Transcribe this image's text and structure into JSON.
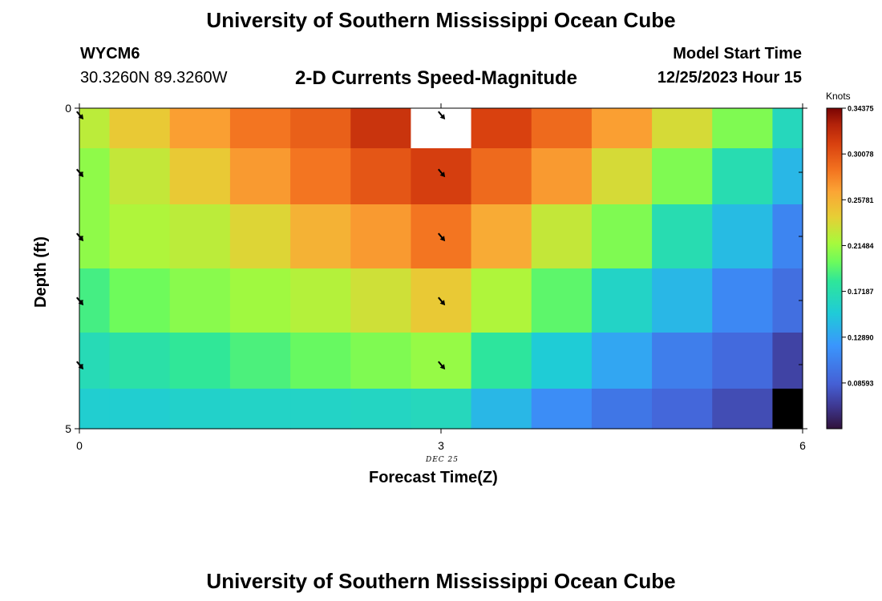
{
  "header": {
    "title": "University of Southern Mississippi Ocean Cube",
    "station": "WYCM6",
    "coords": "30.3260N  89.3260W",
    "subtitle": "2-D Currents Speed-Magnitude",
    "start_label": "Model Start Time",
    "start_time": "12/25/2023 Hour 15"
  },
  "footer": {
    "title": "University of Southern Mississippi Ocean Cube"
  },
  "chart_data": {
    "type": "heatmap",
    "title": "2-D Currents Speed-Magnitude",
    "xlabel": "Forecast Time(Z)",
    "ylabel": "Depth (ft)",
    "x_ticks": [
      "0",
      "3",
      "6"
    ],
    "y_ticks": [
      "0",
      "5"
    ],
    "date_label": "DEC 25",
    "xlim": [
      0,
      6
    ],
    "ylim": [
      0,
      5
    ],
    "x_centers": [
      0,
      0.5,
      1,
      1.5,
      2,
      2.5,
      3,
      3.5,
      4,
      4.5,
      5,
      5.5,
      6
    ],
    "depth_centers": [
      0.25,
      1.0,
      2.0,
      3.0,
      4.0,
      4.75
    ],
    "values": [
      [
        0.225,
        0.245,
        0.268,
        0.285,
        0.295,
        0.318,
        null,
        0.31,
        0.29,
        0.268,
        0.235,
        0.205,
        0.165
      ],
      [
        0.21,
        0.228,
        0.245,
        0.27,
        0.285,
        0.3,
        0.312,
        0.29,
        0.27,
        0.235,
        0.205,
        0.17,
        0.14
      ],
      [
        0.21,
        0.22,
        0.225,
        0.238,
        0.258,
        0.27,
        0.285,
        0.262,
        0.228,
        0.205,
        0.17,
        0.142,
        0.11
      ],
      [
        0.188,
        0.2,
        0.208,
        0.215,
        0.222,
        0.232,
        0.245,
        0.22,
        0.195,
        0.16,
        0.14,
        0.112,
        0.095
      ],
      [
        0.168,
        0.175,
        0.182,
        0.19,
        0.198,
        0.205,
        0.212,
        0.18,
        0.152,
        0.13,
        0.105,
        0.092,
        0.07
      ],
      [
        0.155,
        0.155,
        0.158,
        0.16,
        0.16,
        0.162,
        0.165,
        0.14,
        0.115,
        0.1,
        0.09,
        0.075,
        null
      ]
    ],
    "null_colors": [
      "#ffffff",
      "#000000"
    ],
    "arrows": [
      {
        "x": 0,
        "depth": 0.1
      },
      {
        "x": 0,
        "depth": 1.0
      },
      {
        "x": 0,
        "depth": 2.0
      },
      {
        "x": 0,
        "depth": 3.0
      },
      {
        "x": 0,
        "depth": 4.0
      },
      {
        "x": 3,
        "depth": 0.1
      },
      {
        "x": 3,
        "depth": 1.0
      },
      {
        "x": 3,
        "depth": 2.0
      },
      {
        "x": 3,
        "depth": 3.0
      },
      {
        "x": 3,
        "depth": 4.0
      }
    ],
    "colorbar": {
      "label": "Knots",
      "min": 0.043,
      "max": 0.34375,
      "tick_labels": [
        "0.34375",
        "0.30078",
        "0.25781",
        "0.21484",
        "0.17187",
        "0.12890",
        "0.08593"
      ],
      "tick_values": [
        0.34375,
        0.30078,
        0.25781,
        0.21484,
        0.17187,
        0.1289,
        0.08593
      ]
    }
  }
}
